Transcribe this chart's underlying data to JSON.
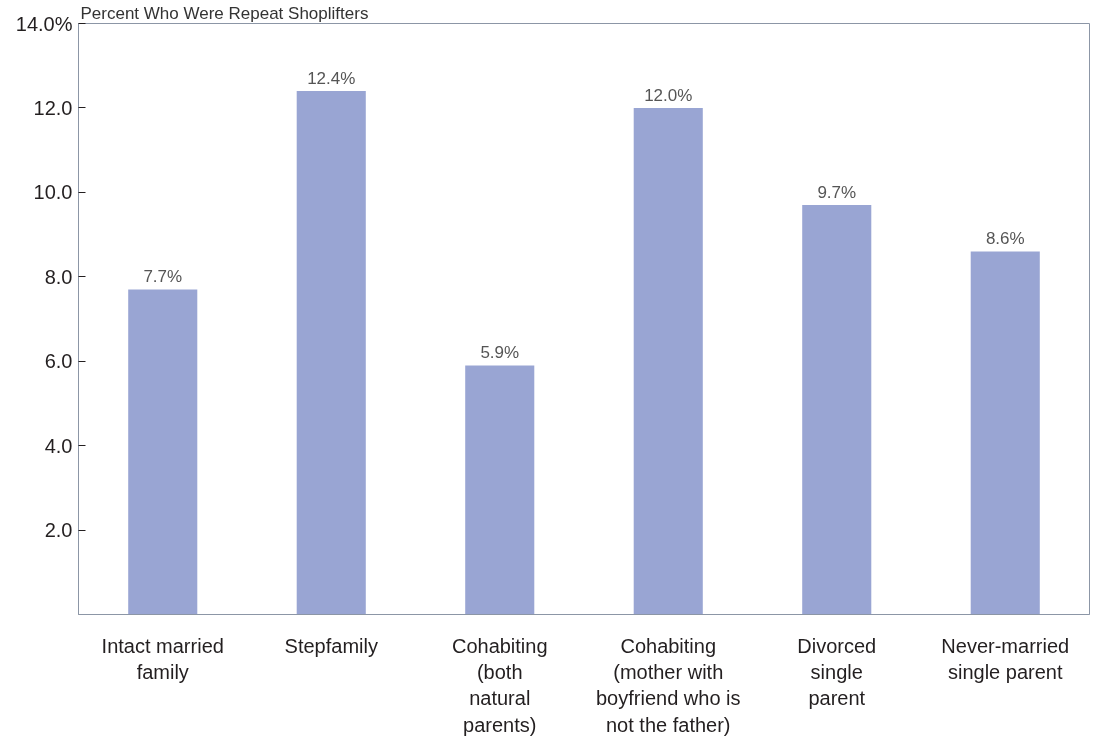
{
  "chart_data": {
    "type": "bar",
    "title": "Percent Who Were Repeat Shoplifters",
    "categories": [
      "Intact married\nfamily",
      "Stepfamily",
      "Cohabiting\n(both\nnatural\nparents)",
      "Cohabiting\n(mother with\nboyfriend who is\nnot the father)",
      "Divorced\nsingle\nparent",
      "Never-married\nsingle parent"
    ],
    "values": [
      7.7,
      12.4,
      5.9,
      12.0,
      9.7,
      8.6
    ],
    "value_labels": [
      "7.7%",
      "12.4%",
      "5.9%",
      "12.0%",
      "9.7%",
      "8.6%"
    ],
    "color": "#99a5d3",
    "ylim": [
      0,
      14
    ],
    "yticks": [
      {
        "value": 2,
        "label": "2.0"
      },
      {
        "value": 4,
        "label": "4.0"
      },
      {
        "value": 6,
        "label": "6.0"
      },
      {
        "value": 8,
        "label": "8.0"
      },
      {
        "value": 10,
        "label": "10.0"
      },
      {
        "value": 12,
        "label": "12.0"
      },
      {
        "value": 14,
        "label": "14.0%"
      }
    ]
  }
}
